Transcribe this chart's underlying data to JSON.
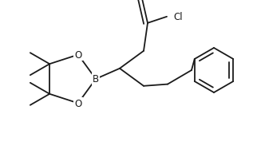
{
  "bg_color": "#ffffff",
  "line_color": "#1a1a1a",
  "line_width": 1.3,
  "font_size": 8.5,
  "font_size_small": 7.5,
  "figsize": [
    3.17,
    2.03
  ],
  "dpi": 100,
  "xlim": [
    0,
    317
  ],
  "ylim": [
    0,
    203
  ]
}
